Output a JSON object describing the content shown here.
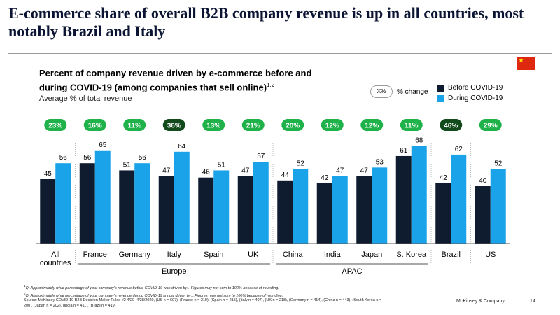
{
  "headline": "E-commerce share of overall B2B company revenue is up in all countries, most notably Brazil and Italy",
  "flag_icon": "china-flag-icon",
  "chart_title": "Percent of company revenue driven by e-commerce before and during COVID-19 (among companies that sell online)",
  "chart_title_sup": "1,2",
  "subtitle": "Average % of total revenue",
  "pct_legend": {
    "oval": "X%",
    "label": "% change"
  },
  "legend": [
    {
      "label": "Before COVID-19",
      "color": "#0f1b2e"
    },
    {
      "label": "During COVID-19",
      "color": "#1aa3e8"
    }
  ],
  "chart_data": {
    "type": "bar",
    "categories": [
      "All countries",
      "France",
      "Germany",
      "Italy",
      "Spain",
      "UK",
      "China",
      "India",
      "Japan",
      "S. Korea",
      "Brazil",
      "US"
    ],
    "series": [
      {
        "name": "Before COVID-19",
        "values": [
          45,
          56,
          51,
          47,
          46,
          47,
          44,
          42,
          47,
          61,
          42,
          40
        ]
      },
      {
        "name": "During COVID-19",
        "values": [
          56,
          65,
          56,
          64,
          51,
          57,
          52,
          47,
          53,
          68,
          62,
          52
        ]
      }
    ],
    "pct_change": [
      "23%",
      "16%",
      "11%",
      "36%",
      "13%",
      "21%",
      "20%",
      "12%",
      "12%",
      "11%",
      "46%",
      "29%"
    ],
    "highlighted_change": [
      false,
      false,
      false,
      true,
      false,
      false,
      false,
      false,
      false,
      false,
      true,
      false
    ],
    "groups": [
      {
        "label": "Europe",
        "categories": [
          "France",
          "Germany",
          "Italy",
          "Spain",
          "UK"
        ]
      },
      {
        "label": "APAC",
        "categories": [
          "China",
          "India",
          "Japan",
          "S. Korea"
        ]
      }
    ],
    "colors": {
      "before": "#0f1b2e",
      "during": "#1aa3e8",
      "change_fill": "#1fb24a",
      "change_highlight": "#124a1c"
    }
  },
  "footnotes": [
    "Q: Approximately what percentage of your company's revenue before COVID-19 was driven by…Figures may not sum to 100% because of rounding.",
    "Q: Approximately what percentage of your company's revenue during COVID-19 is now driven by…Figures may not sum to 100% because of rounding."
  ],
  "source": "Source: McKinsey COVID-19 B2B Decision-Maker Pulse #2 4/20–4/28/2020, (US n = 607), (France n = 219), (Spain n = 215), (Italy n = 407), (UK n = 218), (Germany n = 414), (China n = 443), (South Korea n = 200), (Japan n = 202), (India n = 411), (Brazil n = 419)",
  "brand": "McKinsey & Company",
  "page_number": "14"
}
